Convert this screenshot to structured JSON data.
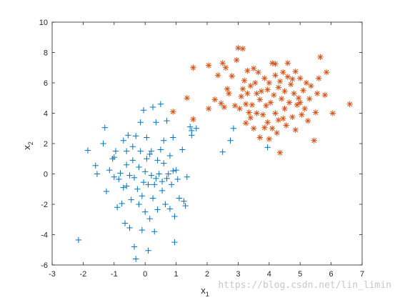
{
  "chart_data": {
    "type": "scatter",
    "title": "",
    "xlabel": {
      "base": "x",
      "sub": "1"
    },
    "ylabel": {
      "base": "x",
      "sub": "2"
    },
    "xlim": [
      -3,
      7
    ],
    "ylim": [
      -6,
      10
    ],
    "xticks": [
      -3,
      -2,
      -1,
      0,
      1,
      2,
      3,
      4,
      5,
      6,
      7
    ],
    "yticks": [
      -6,
      -4,
      -2,
      0,
      2,
      4,
      6,
      8,
      10
    ],
    "grid": false,
    "legend": "none",
    "series": [
      {
        "marker": "plus",
        "color": "#0072BD",
        "points": [
          [
            -2.15,
            -4.35
          ],
          [
            -1.85,
            1.55
          ],
          [
            -1.6,
            0.55
          ],
          [
            -1.55,
            0.0
          ],
          [
            -1.3,
            3.05
          ],
          [
            -1.35,
            2.0
          ],
          [
            -1.25,
            -1.15
          ],
          [
            -1.15,
            0.25
          ],
          [
            -1.05,
            1.0
          ],
          [
            -1.0,
            -0.2
          ],
          [
            -1.0,
            1.1
          ],
          [
            -0.95,
            1.5
          ],
          [
            -0.9,
            -2.2
          ],
          [
            -0.85,
            -0.35
          ],
          [
            -0.8,
            0.05
          ],
          [
            -0.75,
            -1.95
          ],
          [
            -0.7,
            2.2
          ],
          [
            -0.7,
            -0.9
          ],
          [
            -0.65,
            -3.25
          ],
          [
            -0.6,
            1.5
          ],
          [
            -0.6,
            0.6
          ],
          [
            -0.55,
            2.55
          ],
          [
            -0.5,
            -0.1
          ],
          [
            -0.5,
            -3.55
          ],
          [
            -0.45,
            -1.7
          ],
          [
            -0.4,
            1.8
          ],
          [
            -0.4,
            0.9
          ],
          [
            -0.35,
            -0.25
          ],
          [
            -0.35,
            -4.8
          ],
          [
            -0.3,
            -5.6
          ],
          [
            -0.3,
            2.5
          ],
          [
            -0.25,
            -1.0
          ],
          [
            -0.2,
            0.45
          ],
          [
            -0.2,
            -2.0
          ],
          [
            -0.15,
            3.4
          ],
          [
            -0.15,
            1.5
          ],
          [
            -0.1,
            -1.45
          ],
          [
            -0.1,
            -3.7
          ],
          [
            -0.05,
            4.2
          ],
          [
            -0.05,
            -0.55
          ],
          [
            0.0,
            0.15
          ],
          [
            0.0,
            -2.5
          ],
          [
            0.05,
            2.4
          ],
          [
            0.05,
            1.0
          ],
          [
            0.1,
            -0.7
          ],
          [
            0.1,
            -5.05
          ],
          [
            0.15,
            1.3
          ],
          [
            0.15,
            -2.95
          ],
          [
            0.2,
            -0.1
          ],
          [
            0.2,
            1.5
          ],
          [
            0.25,
            -1.6
          ],
          [
            0.3,
            -3.8
          ],
          [
            0.3,
            -0.7
          ],
          [
            0.35,
            3.4
          ],
          [
            0.35,
            -0.3
          ],
          [
            0.4,
            0.9
          ],
          [
            0.4,
            -2.35
          ],
          [
            0.45,
            0.0
          ],
          [
            0.5,
            4.6
          ],
          [
            0.5,
            1.6
          ],
          [
            0.55,
            -0.5
          ],
          [
            0.55,
            -1.1
          ],
          [
            0.6,
            0.7
          ],
          [
            0.6,
            2.2
          ],
          [
            0.65,
            -2.0
          ],
          [
            0.7,
            3.5
          ],
          [
            0.7,
            -0.3
          ],
          [
            0.75,
            0.0
          ],
          [
            0.8,
            1.2
          ],
          [
            0.8,
            -2.3
          ],
          [
            0.85,
            -0.7
          ],
          [
            0.9,
            0.2
          ],
          [
            0.9,
            2.4
          ],
          [
            0.95,
            -2.8
          ],
          [
            0.95,
            -4.5
          ],
          [
            1.0,
            0.25
          ],
          [
            1.05,
            -0.35
          ],
          [
            1.1,
            -1.6
          ],
          [
            1.2,
            1.6
          ],
          [
            1.25,
            -1.8
          ],
          [
            1.3,
            -2.1
          ],
          [
            1.35,
            -0.2
          ],
          [
            1.45,
            3.1
          ],
          [
            1.5,
            2.85
          ],
          [
            1.5,
            2.55
          ],
          [
            1.65,
            3.0
          ],
          [
            2.5,
            1.45
          ],
          [
            2.75,
            2.2
          ],
          [
            2.85,
            3.0
          ],
          [
            3.95,
            1.75
          ],
          [
            0.25,
            4.4
          ],
          [
            -0.6,
            -0.8
          ]
        ]
      },
      {
        "marker": "asterisk",
        "color": "#D95319",
        "points": [
          [
            0.9,
            4.1
          ],
          [
            1.35,
            5.0
          ],
          [
            1.55,
            3.6
          ],
          [
            1.55,
            7.0
          ],
          [
            2.05,
            4.3
          ],
          [
            2.05,
            7.15
          ],
          [
            2.25,
            4.9
          ],
          [
            2.35,
            6.5
          ],
          [
            2.45,
            4.65
          ],
          [
            2.5,
            7.3
          ],
          [
            2.55,
            4.4
          ],
          [
            2.6,
            7.0
          ],
          [
            2.65,
            5.6
          ],
          [
            2.7,
            5.3
          ],
          [
            2.8,
            6.45
          ],
          [
            2.9,
            4.5
          ],
          [
            2.95,
            7.5
          ],
          [
            3.0,
            8.3
          ],
          [
            3.05,
            4.3
          ],
          [
            3.1,
            5.1
          ],
          [
            3.15,
            8.25
          ],
          [
            3.15,
            5.6
          ],
          [
            3.2,
            6.15
          ],
          [
            3.25,
            4.6
          ],
          [
            3.25,
            3.35
          ],
          [
            3.3,
            5.3
          ],
          [
            3.3,
            6.8
          ],
          [
            3.35,
            4.05
          ],
          [
            3.4,
            5.8
          ],
          [
            3.45,
            4.55
          ],
          [
            3.5,
            3.0
          ],
          [
            3.5,
            6.95
          ],
          [
            3.55,
            6.0
          ],
          [
            3.6,
            5.3
          ],
          [
            3.6,
            4.0
          ],
          [
            3.65,
            6.7
          ],
          [
            3.7,
            2.4
          ],
          [
            3.7,
            4.9
          ],
          [
            3.75,
            5.45
          ],
          [
            3.8,
            3.9
          ],
          [
            3.85,
            6.3
          ],
          [
            3.9,
            4.5
          ],
          [
            3.95,
            3.4
          ],
          [
            3.95,
            5.55
          ],
          [
            4.0,
            2.3
          ],
          [
            4.0,
            6.0
          ],
          [
            4.05,
            4.7
          ],
          [
            4.1,
            7.3
          ],
          [
            4.1,
            3.0
          ],
          [
            4.15,
            5.2
          ],
          [
            4.2,
            6.5
          ],
          [
            4.2,
            4.0
          ],
          [
            4.25,
            2.7
          ],
          [
            4.3,
            5.7
          ],
          [
            4.3,
            3.55
          ],
          [
            4.35,
            6.1
          ],
          [
            4.35,
            1.4
          ],
          [
            4.4,
            4.95
          ],
          [
            4.45,
            6.7
          ],
          [
            4.5,
            4.3
          ],
          [
            4.5,
            5.45
          ],
          [
            4.55,
            3.2
          ],
          [
            4.6,
            6.4
          ],
          [
            4.6,
            7.3
          ],
          [
            4.65,
            4.7
          ],
          [
            4.7,
            5.9
          ],
          [
            4.75,
            3.75
          ],
          [
            4.8,
            5.3
          ],
          [
            4.85,
            6.75
          ],
          [
            4.85,
            2.9
          ],
          [
            4.9,
            4.55
          ],
          [
            4.95,
            5.0
          ],
          [
            5.0,
            6.3
          ],
          [
            5.05,
            3.9
          ],
          [
            5.1,
            5.5
          ],
          [
            5.15,
            4.3
          ],
          [
            5.2,
            6.0
          ],
          [
            5.25,
            3.5
          ],
          [
            5.3,
            4.95
          ],
          [
            5.35,
            5.8
          ],
          [
            5.45,
            2.2
          ],
          [
            5.5,
            4.05
          ],
          [
            5.55,
            5.3
          ],
          [
            5.6,
            6.3
          ],
          [
            5.65,
            7.7
          ],
          [
            5.8,
            5.2
          ],
          [
            5.85,
            6.7
          ],
          [
            6.05,
            4.0
          ],
          [
            6.6,
            4.6
          ],
          [
            4.2,
            7.25
          ],
          [
            4.75,
            6.25
          ],
          [
            3.4,
            3.7
          ],
          [
            4.45,
            3.65
          ],
          [
            5.0,
            4.7
          ],
          [
            3.85,
            3.05
          ]
        ]
      }
    ]
  },
  "watermark": "https://blog.csdn.net/lin_limin"
}
